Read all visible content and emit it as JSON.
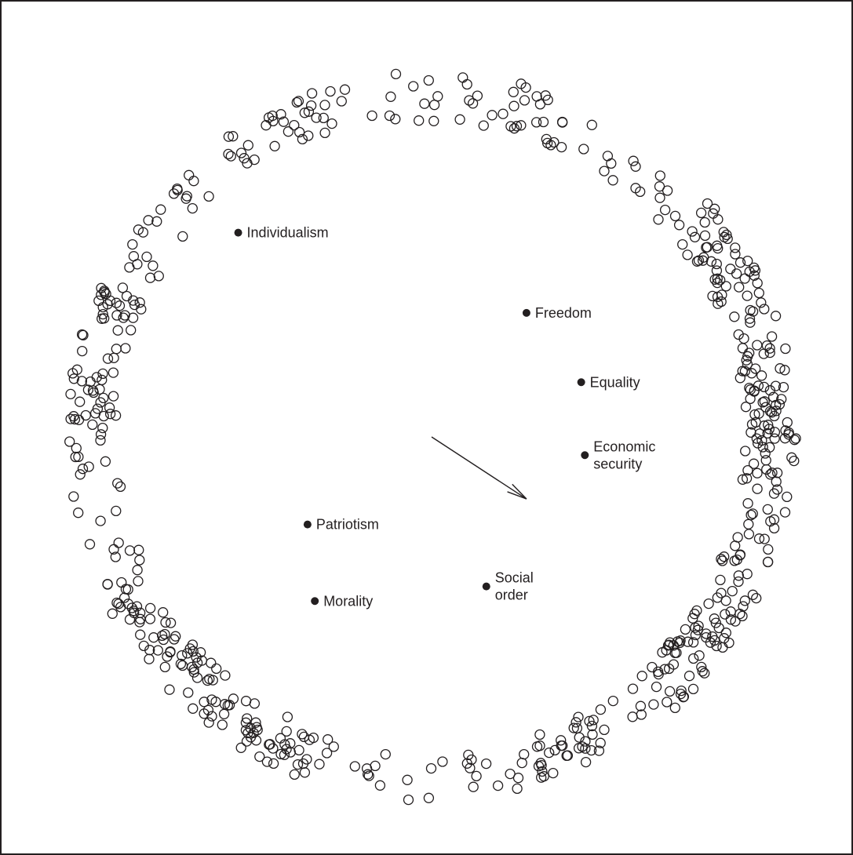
{
  "chart_data": {
    "type": "scatter",
    "title": "",
    "xlabel": "",
    "ylabel": "",
    "xlim": [
      -1.15,
      1.15
    ],
    "ylim": [
      -1.15,
      1.15
    ],
    "grid": false,
    "legend": "none",
    "axes_visible": false,
    "colors": {
      "frame": "#231f20",
      "respondent_marker": "#231f20",
      "value_marker": "#231f20",
      "arrow": "#231f20"
    },
    "values_points": [
      {
        "lines": [
          "Individualism"
        ],
        "x": -0.53,
        "y": 0.56
      },
      {
        "lines": [
          "Freedom"
        ],
        "x": 0.26,
        "y": 0.34
      },
      {
        "lines": [
          "Equality"
        ],
        "x": 0.41,
        "y": 0.15
      },
      {
        "lines": [
          "Economic",
          "security"
        ],
        "x": 0.42,
        "y": -0.05
      },
      {
        "lines": [
          "Patriotism"
        ],
        "x": -0.34,
        "y": -0.24
      },
      {
        "lines": [
          "Morality"
        ],
        "x": -0.32,
        "y": -0.45
      },
      {
        "lines": [
          "Social",
          "order"
        ],
        "x": 0.15,
        "y": -0.41
      }
    ],
    "arrow": {
      "from": [
        0.0,
        0.0
      ],
      "to": [
        0.26,
        -0.17
      ]
    },
    "respondents": {
      "count": 640,
      "marker": "open-circle",
      "arrangement": "ring around the value points",
      "radius_range": [
        0.86,
        1.0
      ],
      "generator_seed": 20241,
      "density_peaks": [
        {
          "angle_deg": 10,
          "weight": 1.6
        },
        {
          "angle_deg": 32,
          "weight": 1.2
        },
        {
          "angle_deg": -5,
          "weight": 1.4
        },
        {
          "angle_deg": -38,
          "weight": 2.2
        },
        {
          "angle_deg": -65,
          "weight": 0.9
        },
        {
          "angle_deg": -110,
          "weight": 0.7
        },
        {
          "angle_deg": -130,
          "weight": 1.0
        },
        {
          "angle_deg": -148,
          "weight": 0.9
        },
        {
          "angle_deg": 175,
          "weight": 0.8
        },
        {
          "angle_deg": 160,
          "weight": 0.7
        },
        {
          "angle_deg": 70,
          "weight": 0.8
        },
        {
          "angle_deg": 112,
          "weight": 0.7
        }
      ]
    }
  }
}
